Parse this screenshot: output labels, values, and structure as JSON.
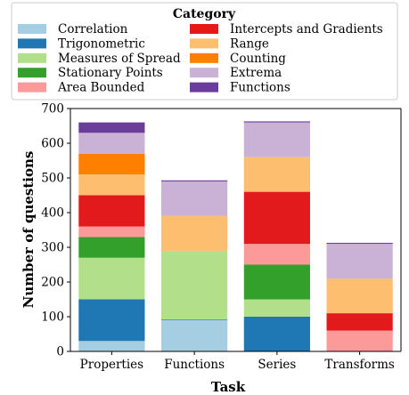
{
  "chart_data": {
    "type": "bar",
    "stacked": true,
    "categories": [
      "Properties",
      "Functions",
      "Series",
      "Transforms"
    ],
    "series": [
      {
        "name": "Correlation",
        "color": "#a6cee3",
        "values": [
          30,
          90,
          0,
          0
        ]
      },
      {
        "name": "Trigonometric",
        "color": "#1f78b4",
        "values": [
          120,
          2,
          100,
          0
        ]
      },
      {
        "name": "Measures of Spread",
        "color": "#b2df8a",
        "values": [
          120,
          198,
          50,
          0
        ]
      },
      {
        "name": "Stationary Points",
        "color": "#33a02c",
        "values": [
          60,
          0,
          100,
          0
        ]
      },
      {
        "name": "Area Bounded",
        "color": "#fb9a99",
        "values": [
          30,
          0,
          60,
          60
        ]
      },
      {
        "name": "Intercepts and Gradients",
        "color": "#e31a1c",
        "values": [
          90,
          0,
          150,
          50
        ]
      },
      {
        "name": "Range",
        "color": "#fdbf6f",
        "values": [
          60,
          100,
          100,
          100
        ]
      },
      {
        "name": "Counting",
        "color": "#ff7f00",
        "values": [
          60,
          0,
          0,
          0
        ]
      },
      {
        "name": "Extrema",
        "color": "#cab2d6",
        "values": [
          60,
          100,
          100,
          100
        ]
      },
      {
        "name": "Functions",
        "color": "#6a3d9a",
        "values": [
          30,
          3,
          3,
          3
        ]
      }
    ],
    "legend_title": "Category",
    "legend_position": "top",
    "xlabel": "Task",
    "ylabel": "Number of questions",
    "ylim": [
      0,
      700
    ],
    "yticks": [
      0,
      100,
      200,
      300,
      400,
      500,
      600,
      700
    ],
    "grid": false
  }
}
